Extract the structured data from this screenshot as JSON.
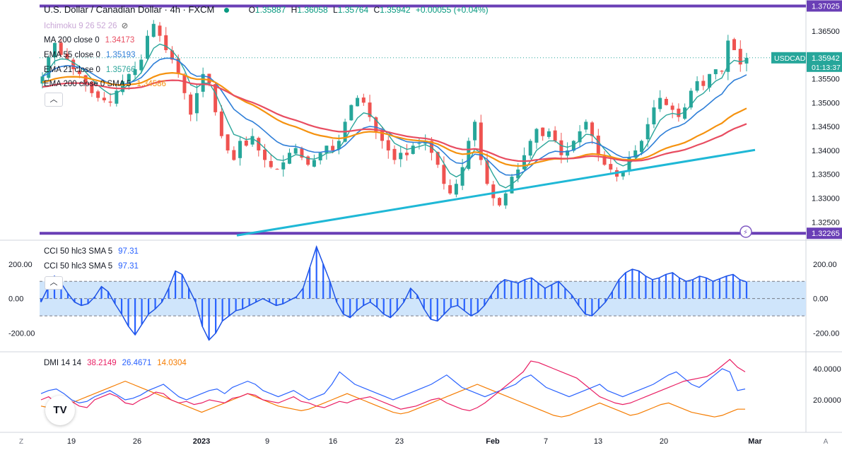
{
  "header": {
    "title": "U.S. Dollar / Canadian Dollar · 4h · FXCM",
    "ohlc": [
      {
        "k": "O",
        "v": "1.35887"
      },
      {
        "k": "H",
        "v": "1.36058"
      },
      {
        "k": "L",
        "v": "1.35764"
      },
      {
        "k": "C",
        "v": "1.35942"
      }
    ],
    "change": "+0.00055 (+0.04%)"
  },
  "legend": [
    {
      "label": "Ichimoku 9 26 52 26",
      "value": "",
      "color": "#c9a7d6"
    },
    {
      "label": "MA 200 close 0",
      "value": "1.34173",
      "color": "#e84d61"
    },
    {
      "label": "EMA 55 close 0",
      "value": "1.35193",
      "color": "#2f7fd8"
    },
    {
      "label": "EMA 21 close 0",
      "value": "1.35766",
      "color": "#2aa59a"
    },
    {
      "label": "EMA 200 close 0 SMA 5",
      "value": "1.34586",
      "color": "#f5920f"
    }
  ],
  "price_axis": {
    "currency": "CAD",
    "ticks": [
      "1.36500",
      "1.36000",
      "1.35500",
      "1.35000",
      "1.34500",
      "1.34000",
      "1.33500",
      "1.33000",
      "1.32500"
    ],
    "hline_top": "1.37025",
    "hline_bottom": "1.32265",
    "symbol_badge": "USDCAD",
    "last_price": "1.35942",
    "countdown": "01:13:37"
  },
  "cci": {
    "legend1": "CCI 50 hlc3 SMA 5",
    "value1": "97.31",
    "legend2": "CCI 50 hlc3 SMA 5",
    "value2": "97.31",
    "ticks": [
      "200.00",
      "0.00",
      "-200.00"
    ],
    "band_upper": 100,
    "band_lower": -100
  },
  "dmi": {
    "label": "DMI 14 14",
    "plus": "38.2149",
    "minus": "26.4671",
    "adx": "14.0304",
    "ticks": [
      "40.0000",
      "20.0000"
    ],
    "colors": {
      "plus": "#e91e63",
      "minus": "#2962ff",
      "adx": "#f57c00"
    }
  },
  "time_axis": [
    "19",
    "26",
    "2023",
    "9",
    "16",
    "23",
    "Feb",
    "7",
    "13",
    "20",
    "Mar"
  ],
  "colors": {
    "up": "#26a69a",
    "down": "#ef5350",
    "trendline": "#1fb8d6",
    "hline": "#6a3fb6",
    "cci_fill": "#2962ff"
  },
  "chart_data": {
    "type": "candlestick",
    "y_range": [
      1.3215,
      1.3715
    ],
    "trendline": {
      "from_price": 1.3222,
      "to_price": 1.3401
    },
    "horizontal_lines": [
      1.37025,
      1.32265
    ],
    "path": [
      1.3555,
      1.3595,
      1.3625,
      1.36,
      1.359,
      1.357,
      1.356,
      1.354,
      1.352,
      1.351,
      1.3505,
      1.35,
      1.3525,
      1.3545,
      1.356,
      1.357,
      1.359,
      1.364,
      1.3665,
      1.364,
      1.361,
      1.359,
      1.356,
      1.352,
      1.3475,
      1.352,
      1.356,
      1.354,
      1.348,
      1.343,
      1.34,
      1.338,
      1.342,
      1.341,
      1.343,
      1.34,
      1.338,
      1.3365,
      1.336,
      1.3375,
      1.3395,
      1.3405,
      1.3385,
      1.337,
      1.338,
      1.3395,
      1.341,
      1.34,
      1.342,
      1.346,
      1.3495,
      1.351,
      1.35,
      1.347,
      1.344,
      1.342,
      1.34,
      1.338,
      1.3395,
      1.339,
      1.341,
      1.3415,
      1.342,
      1.3395,
      1.337,
      1.333,
      1.331,
      1.333,
      1.3365,
      1.342,
      1.346,
      1.338,
      1.333,
      1.33,
      1.3285,
      1.331,
      1.3345,
      1.336,
      1.339,
      1.342,
      1.3445,
      1.343,
      1.344,
      1.342,
      1.339,
      1.34,
      1.342,
      1.344,
      1.346,
      1.343,
      1.339,
      1.337,
      1.336,
      1.3345,
      1.3355,
      1.3385,
      1.34,
      1.342,
      1.3455,
      1.349,
      1.351,
      1.3495,
      1.3485,
      1.347,
      1.349,
      1.3525,
      1.3545,
      1.3535,
      1.356,
      1.357,
      1.3565,
      1.363,
      1.361,
      1.358,
      1.3594
    ],
    "cci_values": [
      -20,
      60,
      130,
      90,
      30,
      -20,
      -40,
      -30,
      10,
      70,
      40,
      -30,
      -90,
      -160,
      -210,
      -150,
      -90,
      -60,
      -20,
      60,
      160,
      140,
      60,
      -20,
      -160,
      -240,
      -200,
      -130,
      -100,
      -70,
      -60,
      -40,
      -20,
      0,
      -20,
      -40,
      -30,
      -10,
      10,
      60,
      180,
      300,
      200,
      100,
      -20,
      -90,
      -110,
      -70,
      -40,
      -20,
      -50,
      -90,
      -110,
      -70,
      -20,
      60,
      20,
      -60,
      -120,
      -130,
      -90,
      -50,
      -40,
      -70,
      -100,
      -80,
      -40,
      20,
      80,
      110,
      100,
      90,
      110,
      120,
      90,
      60,
      80,
      100,
      60,
      20,
      -40,
      -90,
      -100,
      -60,
      -20,
      40,
      110,
      150,
      170,
      160,
      130,
      110,
      120,
      140,
      150,
      120,
      100,
      110,
      130,
      120,
      100,
      115,
      130,
      140,
      110,
      97
    ],
    "dmi_plus": [
      20,
      22,
      18,
      17,
      19,
      16,
      15,
      20,
      22,
      24,
      22,
      18,
      17,
      20,
      22,
      25,
      24,
      20,
      18,
      19,
      17,
      18,
      20,
      19,
      18,
      21,
      22,
      24,
      23,
      20,
      19,
      18,
      20,
      22,
      19,
      18,
      16,
      15,
      17,
      19,
      18,
      20,
      21,
      22,
      20,
      18,
      16,
      14,
      15,
      16,
      18,
      20,
      21,
      18,
      16,
      14,
      13,
      15,
      18,
      22,
      26,
      30,
      34,
      38,
      45,
      44,
      42,
      40,
      38,
      36,
      34,
      30,
      26,
      22,
      20,
      18,
      17,
      18,
      20,
      22,
      24,
      26,
      28,
      30,
      32,
      33,
      34,
      35,
      38,
      42,
      46,
      41,
      38
    ],
    "dmi_minus": [
      24,
      26,
      27,
      24,
      20,
      18,
      19,
      22,
      24,
      26,
      23,
      20,
      21,
      23,
      26,
      28,
      30,
      26,
      22,
      20,
      22,
      24,
      26,
      27,
      24,
      28,
      30,
      32,
      30,
      26,
      24,
      22,
      24,
      26,
      23,
      20,
      22,
      24,
      30,
      38,
      34,
      30,
      28,
      26,
      24,
      22,
      20,
      22,
      24,
      26,
      28,
      30,
      33,
      36,
      32,
      28,
      26,
      24,
      22,
      24,
      26,
      28,
      30,
      34,
      36,
      32,
      28,
      26,
      24,
      22,
      24,
      26,
      28,
      30,
      26,
      24,
      22,
      24,
      26,
      28,
      30,
      33,
      36,
      38,
      34,
      30,
      28,
      32,
      36,
      40,
      38,
      26,
      27
    ],
    "dmi_adx": [
      16,
      15,
      14,
      16,
      18,
      20,
      22,
      24,
      26,
      28,
      30,
      32,
      30,
      28,
      26,
      24,
      22,
      20,
      18,
      16,
      14,
      12,
      14,
      16,
      18,
      20,
      22,
      24,
      22,
      20,
      18,
      16,
      15,
      14,
      13,
      14,
      16,
      18,
      20,
      22,
      24,
      22,
      20,
      18,
      16,
      14,
      12,
      11,
      12,
      14,
      16,
      18,
      20,
      22,
      24,
      26,
      28,
      30,
      28,
      26,
      24,
      22,
      20,
      18,
      16,
      14,
      12,
      10,
      9,
      10,
      12,
      14,
      16,
      18,
      16,
      14,
      12,
      10,
      11,
      13,
      15,
      17,
      18,
      16,
      14,
      12,
      11,
      10,
      9,
      10,
      12,
      14,
      14
    ]
  }
}
